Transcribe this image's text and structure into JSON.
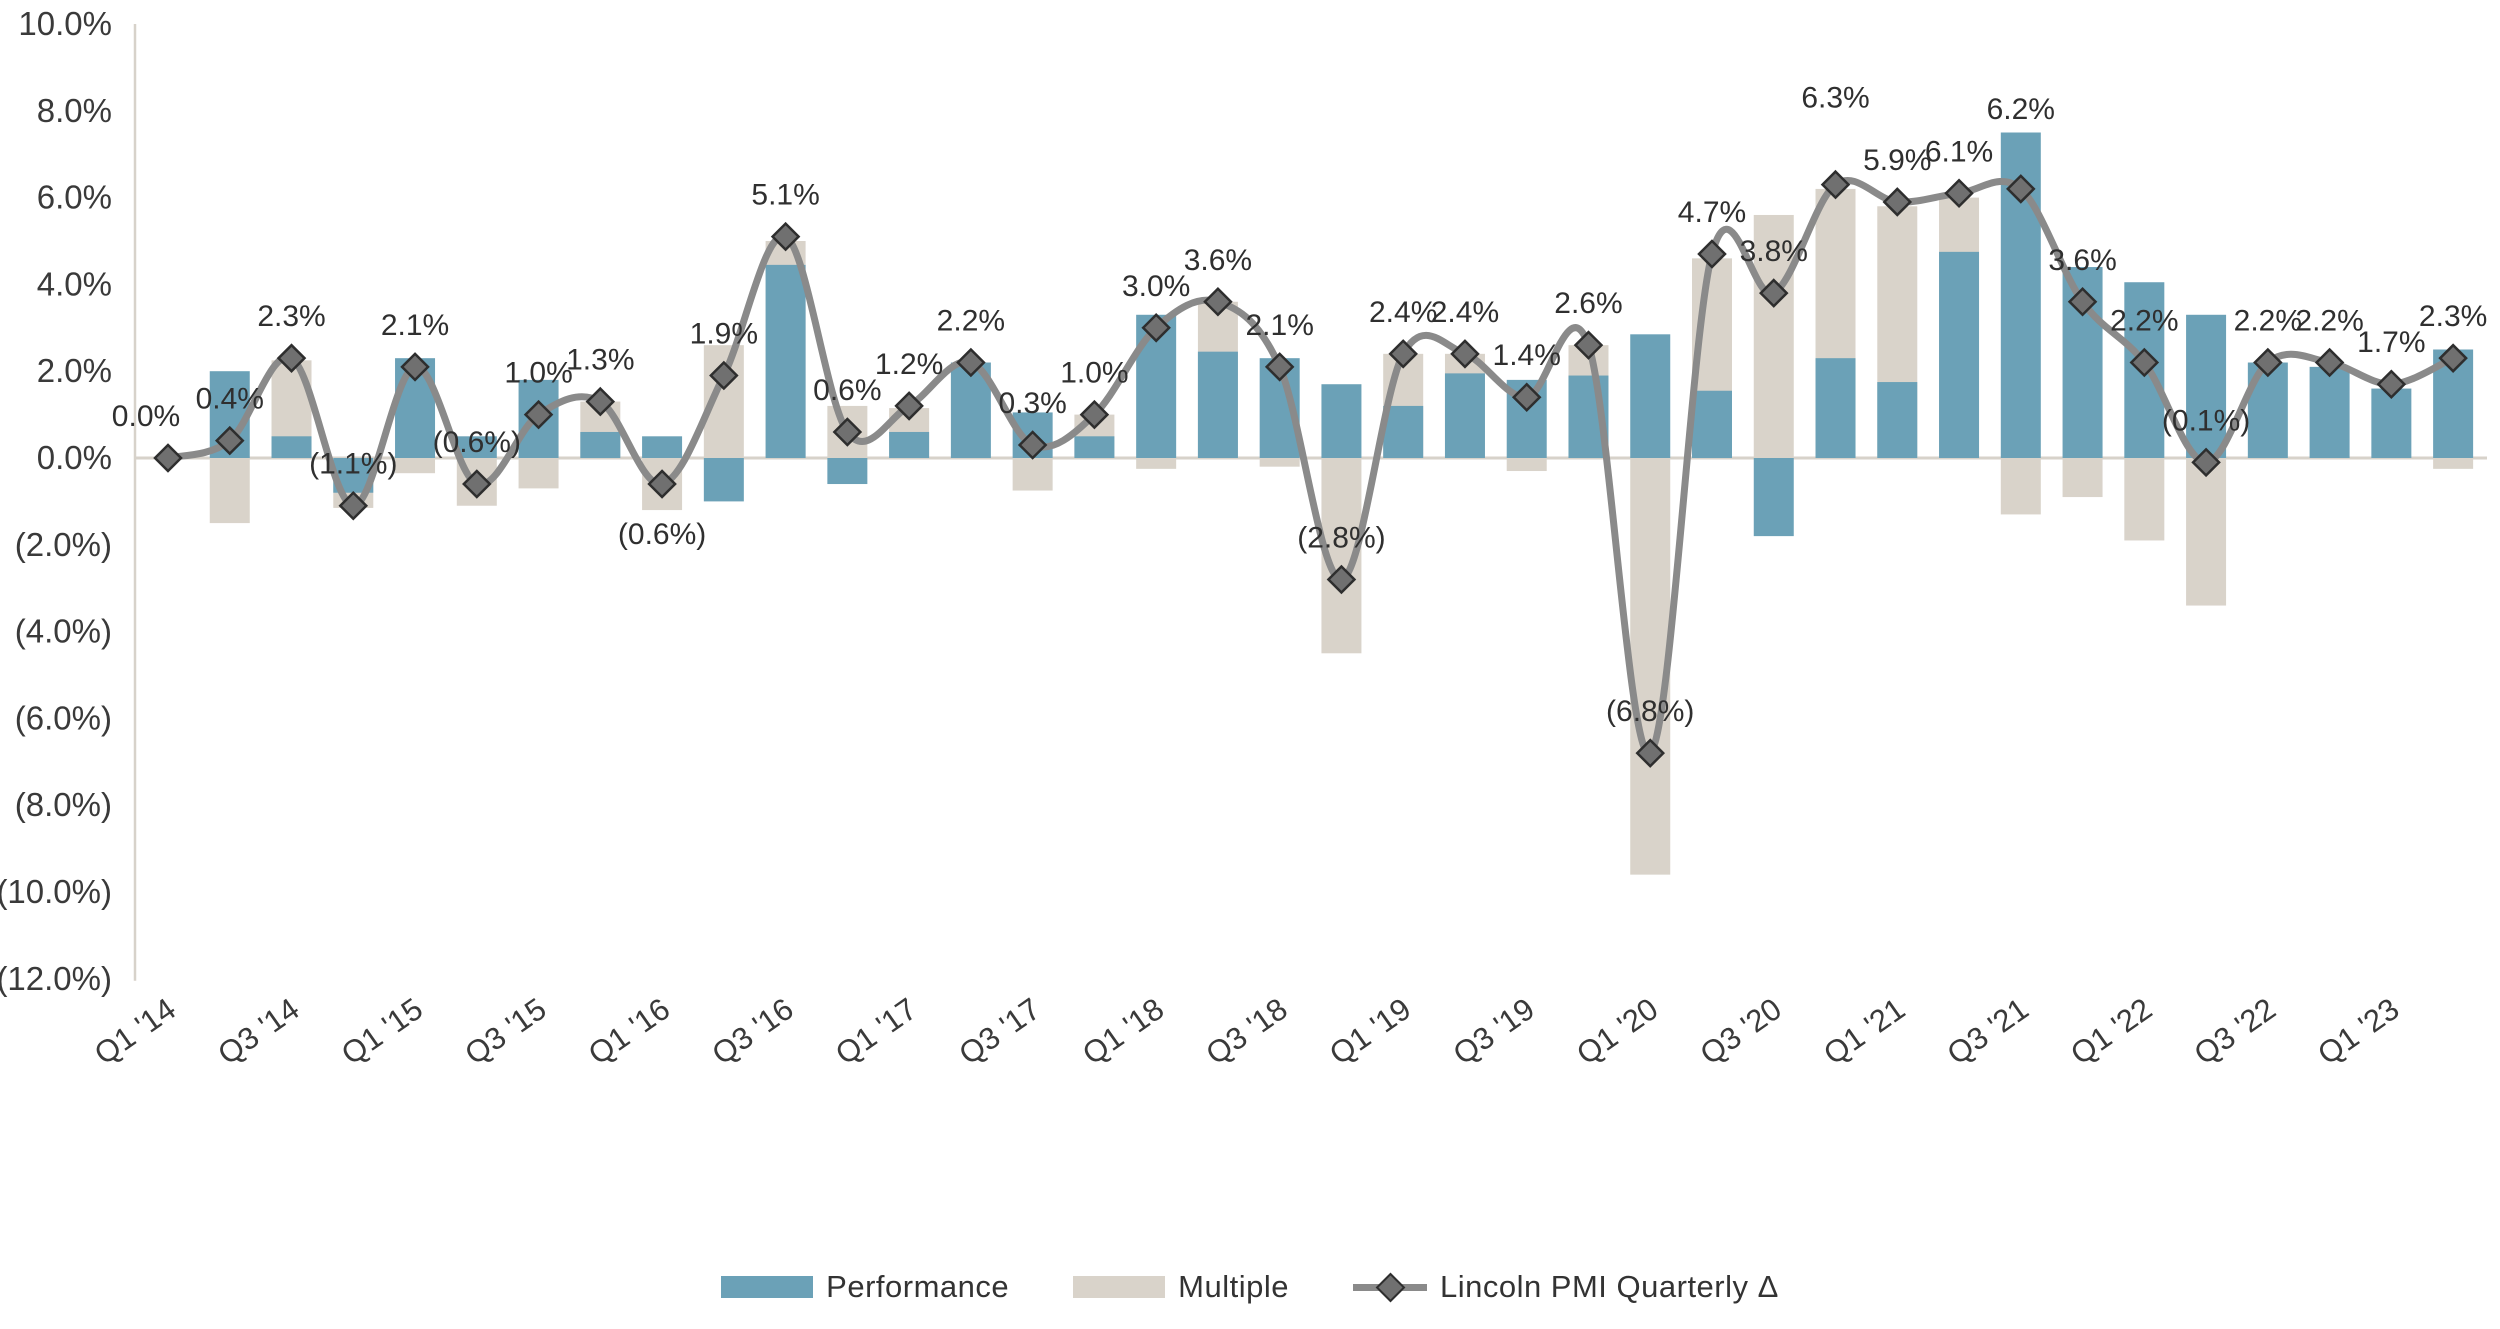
{
  "chart_data": {
    "type": "bar",
    "subtype": "clustered-overlap bars with smoothed line overlay",
    "title": "",
    "xlabel": "",
    "ylabel": "",
    "categories": [
      "Q1 '14",
      "Q2 '14",
      "Q3 '14",
      "Q4 '14",
      "Q1 '15",
      "Q2 '15",
      "Q3 '15",
      "Q4 '15",
      "Q1 '16",
      "Q2 '16",
      "Q3 '16",
      "Q4 '16",
      "Q1 '17",
      "Q2 '17",
      "Q3 '17",
      "Q4 '17",
      "Q1 '18",
      "Q2 '18",
      "Q3 '18",
      "Q4 '18",
      "Q1 '19",
      "Q2 '19",
      "Q3 '19",
      "Q4 '19",
      "Q1 '20",
      "Q2 '20",
      "Q3 '20",
      "Q4 '20",
      "Q1 '21",
      "Q2 '21",
      "Q3 '21",
      "Q4 '21",
      "Q1 '22",
      "Q2 '22",
      "Q3 '22",
      "Q4 '22",
      "Q1 '23",
      "Q2 '23"
    ],
    "x_tick_labels": [
      "Q1 '14",
      "Q3 '14",
      "Q1 '15",
      "Q3 '15",
      "Q1 '16",
      "Q3 '16",
      "Q1 '17",
      "Q3 '17",
      "Q1 '18",
      "Q3 '18",
      "Q1 '19",
      "Q3 '19",
      "Q1 '20",
      "Q3 '20",
      "Q1 '21",
      "Q3 '21",
      "Q1 '22",
      "Q3 '22",
      "Q1 '23"
    ],
    "series": [
      {
        "name": "Performance",
        "type": "bar",
        "color": "#6ba1b7",
        "values": [
          0.0,
          2.0,
          0.5,
          -0.8,
          2.3,
          0.5,
          1.8,
          0.6,
          0.5,
          -1.0,
          4.45,
          -0.6,
          0.6,
          2.2,
          1.05,
          0.5,
          3.3,
          2.45,
          2.3,
          1.7,
          1.2,
          1.95,
          1.8,
          1.9,
          2.85,
          1.55,
          -1.8,
          2.3,
          1.75,
          4.75,
          7.5,
          4.4,
          4.05,
          3.3,
          2.2,
          2.1,
          1.6,
          2.5
        ]
      },
      {
        "name": "Multiple",
        "type": "bar",
        "color": "#d9d3ca",
        "values": [
          0.0,
          -1.5,
          2.25,
          -1.15,
          -0.35,
          -1.1,
          -0.7,
          1.3,
          -1.2,
          2.6,
          5.0,
          1.2,
          1.15,
          0.0,
          -0.75,
          1.0,
          -0.25,
          3.6,
          -0.2,
          -4.5,
          2.4,
          2.4,
          -0.3,
          2.6,
          -9.6,
          4.6,
          5.6,
          6.2,
          5.8,
          6.0,
          -1.3,
          -0.9,
          -1.9,
          -3.4,
          0.0,
          0.0,
          0.0,
          -0.25
        ]
      },
      {
        "name": "Lincoln PMI Quarterly Δ",
        "type": "line",
        "color": "#8a8a8a",
        "marker_fill": "#707070",
        "marker_stroke": "#2e2e2e",
        "values": [
          0.0,
          0.4,
          2.3,
          -1.1,
          2.1,
          -0.6,
          1.0,
          1.3,
          -0.6,
          1.9,
          5.1,
          0.6,
          1.2,
          2.2,
          0.3,
          1.0,
          3.0,
          3.6,
          2.1,
          -2.8,
          2.4,
          2.4,
          1.4,
          2.6,
          -6.8,
          4.7,
          3.8,
          6.3,
          5.9,
          6.1,
          6.2,
          3.6,
          2.2,
          -0.1,
          2.2,
          2.2,
          1.7,
          2.3
        ],
        "point_labels": [
          "0.0%",
          "0.4%",
          "2.3%",
          "(1.1%)",
          "2.1%",
          "(0.6%)",
          "1.0%",
          "1.3%",
          "(0.6%)",
          "1.9%",
          "5.1%",
          "0.6%",
          "1.2%",
          "2.2%",
          "0.3%",
          "1.0%",
          "3.0%",
          "3.6%",
          "2.1%",
          "(2.8%)",
          "2.4%",
          "2.4%",
          "1.4%",
          "2.6%",
          "(6.8%)",
          "4.7%",
          "3.8%",
          "6.3%",
          "5.9%",
          "6.1%",
          "6.2%",
          "3.6%",
          "2.2%",
          "(0.1%)",
          "2.2%",
          "2.2%",
          "1.7%",
          "2.3%"
        ],
        "label_offsets": {
          "0": {
            "dx": -22,
            "dy": 0
          },
          "8": {
            "dx": 0,
            "dy": 92
          },
          "27": {
            "dx": 0,
            "dy": -45
          },
          "30": {
            "dx": 0,
            "dy": -38
          }
        }
      }
    ],
    "y_axis": {
      "min": -12,
      "max": 10,
      "tick_step": 2,
      "tick_values": [
        10,
        8,
        6,
        4,
        2,
        0,
        -2,
        -4,
        -6,
        -8,
        -10,
        -12
      ],
      "tick_labels": [
        "10.0%",
        "8.0%",
        "6.0%",
        "4.0%",
        "2.0%",
        "0.0%",
        "(2.0%)",
        "(4.0%)",
        "(6.0%)",
        "(8.0%)",
        "(10.0%)",
        "(12.0%)"
      ],
      "gridlines": false
    },
    "legend": {
      "position": "bottom-center",
      "entries": [
        "Performance",
        "Multiple",
        "Lincoln PMI Quarterly Δ"
      ]
    },
    "style": {
      "axis_line_color": "#d7d2ca",
      "tick_text_color": "#3a3a3a",
      "label_text_color": "#2f2f2f",
      "background": "#ffffff"
    }
  }
}
